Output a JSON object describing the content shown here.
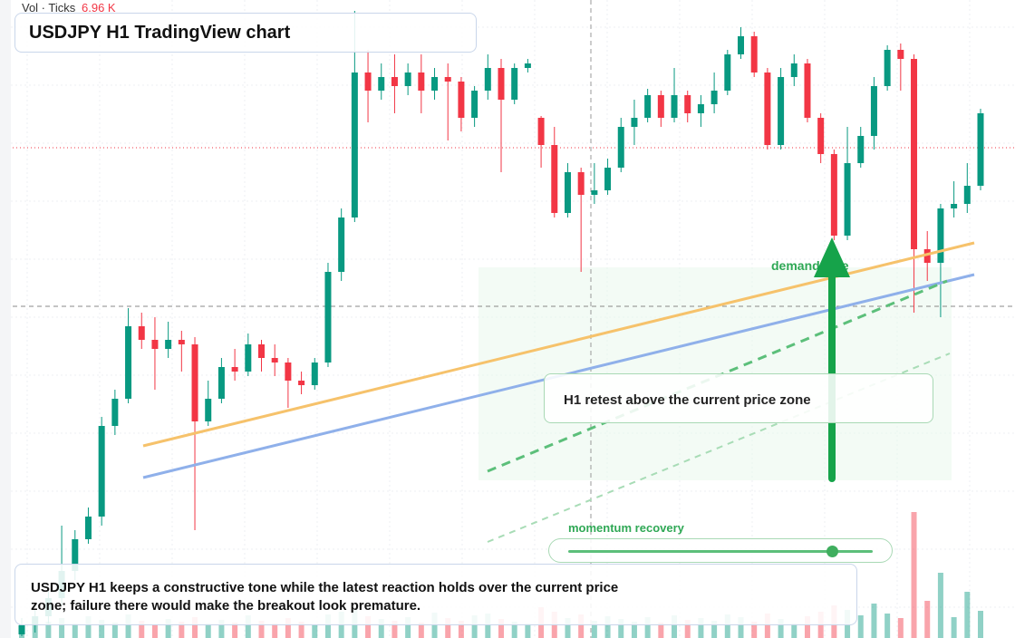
{
  "header": {
    "volume_label": "Vol · Ticks",
    "volume_value": "6.96 K",
    "title": "USDJPY H1 TradingView chart"
  },
  "annotations": {
    "zone_label": "demand side",
    "retest": "H1 retest above the current price zone",
    "momentum": "momentum recovery"
  },
  "caption": "USDJPY H1 keeps a constructive tone while the latest reaction holds over the current price zone; failure there would make the breakout look premature.",
  "chart_data": {
    "type": "candlestick",
    "up_color": "#089981",
    "down_color": "#f23645",
    "ylim": [
      150.96,
      158.0
    ],
    "volume_lim": [
      0,
      14
    ],
    "ohlc": [
      [
        151.0,
        151.18,
        150.98,
        151.1
      ],
      [
        151.1,
        151.28,
        151.02,
        151.2
      ],
      [
        151.2,
        151.48,
        151.12,
        151.4
      ],
      [
        151.4,
        152.2,
        151.32,
        151.7
      ],
      [
        151.7,
        152.15,
        151.6,
        152.05
      ],
      [
        152.05,
        152.4,
        152.0,
        152.3
      ],
      [
        152.3,
        153.4,
        152.2,
        153.3
      ],
      [
        153.3,
        153.7,
        153.2,
        153.6
      ],
      [
        153.6,
        154.6,
        153.55,
        154.4
      ],
      [
        154.4,
        154.55,
        154.15,
        154.25
      ],
      [
        154.25,
        154.5,
        153.7,
        154.15
      ],
      [
        154.15,
        154.45,
        154.05,
        154.25
      ],
      [
        154.25,
        154.35,
        153.9,
        154.2
      ],
      [
        154.2,
        154.28,
        152.15,
        153.35
      ],
      [
        153.35,
        153.8,
        153.3,
        153.6
      ],
      [
        153.6,
        154.05,
        153.55,
        153.95
      ],
      [
        153.95,
        154.15,
        153.8,
        153.9
      ],
      [
        153.9,
        154.32,
        153.85,
        154.2
      ],
      [
        154.2,
        154.25,
        153.9,
        154.05
      ],
      [
        154.05,
        154.2,
        153.85,
        154.0
      ],
      [
        154.0,
        154.05,
        153.5,
        153.8
      ],
      [
        153.8,
        153.9,
        153.65,
        153.75
      ],
      [
        153.75,
        154.05,
        153.7,
        154.0
      ],
      [
        154.0,
        155.1,
        153.95,
        155.0
      ],
      [
        155.0,
        155.7,
        154.9,
        155.6
      ],
      [
        155.6,
        157.88,
        155.55,
        157.2
      ],
      [
        157.2,
        157.45,
        156.65,
        157.0
      ],
      [
        157.0,
        157.3,
        156.9,
        157.15
      ],
      [
        157.15,
        157.4,
        156.75,
        157.05
      ],
      [
        157.05,
        157.3,
        156.95,
        157.2
      ],
      [
        157.2,
        157.4,
        156.75,
        157.0
      ],
      [
        157.0,
        157.25,
        156.9,
        157.15
      ],
      [
        157.15,
        157.3,
        156.45,
        157.1
      ],
      [
        157.1,
        157.15,
        156.55,
        156.7
      ],
      [
        156.7,
        157.05,
        156.6,
        157.0
      ],
      [
        157.0,
        157.4,
        156.9,
        157.25
      ],
      [
        157.25,
        157.35,
        156.1,
        156.9
      ],
      [
        156.9,
        157.3,
        156.85,
        157.25
      ],
      [
        157.25,
        157.35,
        157.2,
        157.3
      ],
      [
        156.7,
        156.72,
        156.15,
        156.4
      ],
      [
        156.4,
        156.6,
        155.6,
        155.65
      ],
      [
        155.65,
        156.2,
        155.6,
        156.1
      ],
      [
        156.1,
        156.15,
        155.0,
        155.85
      ],
      [
        155.85,
        156.2,
        155.75,
        155.9
      ],
      [
        155.9,
        156.25,
        155.85,
        156.15
      ],
      [
        156.15,
        156.7,
        156.1,
        156.6
      ],
      [
        156.6,
        156.9,
        156.4,
        156.7
      ],
      [
        156.7,
        157.02,
        156.65,
        156.95
      ],
      [
        156.95,
        157.0,
        156.6,
        156.7
      ],
      [
        156.7,
        157.25,
        156.65,
        156.95
      ],
      [
        156.95,
        157.0,
        156.65,
        156.75
      ],
      [
        156.75,
        156.95,
        156.6,
        156.85
      ],
      [
        156.85,
        157.2,
        156.75,
        157.0
      ],
      [
        157.0,
        157.45,
        156.95,
        157.4
      ],
      [
        157.4,
        157.7,
        157.35,
        157.6
      ],
      [
        157.6,
        157.65,
        157.15,
        157.2
      ],
      [
        157.2,
        157.25,
        156.35,
        156.4
      ],
      [
        156.4,
        157.25,
        156.35,
        157.15
      ],
      [
        157.15,
        157.4,
        157.05,
        157.3
      ],
      [
        157.3,
        157.35,
        156.65,
        156.7
      ],
      [
        156.7,
        156.75,
        156.2,
        156.3
      ],
      [
        156.3,
        156.35,
        155.35,
        155.4
      ],
      [
        155.4,
        156.6,
        155.35,
        156.2
      ],
      [
        156.2,
        156.6,
        156.15,
        156.5
      ],
      [
        156.5,
        157.15,
        156.35,
        157.05
      ],
      [
        157.05,
        157.5,
        157.0,
        157.45
      ],
      [
        157.45,
        157.52,
        157.0,
        157.35
      ],
      [
        157.35,
        157.4,
        154.55,
        155.25
      ],
      [
        155.25,
        155.45,
        154.9,
        155.1
      ],
      [
        155.1,
        155.75,
        154.5,
        155.7
      ],
      [
        155.7,
        156.0,
        155.6,
        155.75
      ],
      [
        155.75,
        156.2,
        155.65,
        155.95
      ],
      [
        155.95,
        156.8,
        155.9,
        156.75
      ]
    ],
    "volume": [
      1.5,
      2,
      1.8,
      2.2,
      1.6,
      2.4,
      2,
      1.7,
      2.6,
      1.9,
      1.5,
      2.1,
      1.8,
      2.3,
      1.6,
      2,
      1.7,
      2.5,
      1.9,
      1.6,
      2.2,
      1.8,
      1.5,
      2.6,
      2.9,
      3.2,
      2.4,
      2.1,
      1.9,
      2.3,
      1.7,
      2.8,
      2.2,
      1.9,
      2.5,
      2.7,
      2.1,
      1.8,
      1.6,
      3.4,
      2.9,
      2.2,
      2.6,
      1.9,
      2.4,
      2.1,
      1.8,
      2.3,
      1.7,
      2.5,
      2,
      2.2,
      1.9,
      2.6,
      2.3,
      1.8,
      2.7,
      2.1,
      1.6,
      2.4,
      2.9,
      3.6,
      3.1,
      2.5,
      3.8,
      2.7,
      2.2,
      13.9,
      4.1,
      7.2,
      2.3,
      5.1,
      3
    ]
  }
}
